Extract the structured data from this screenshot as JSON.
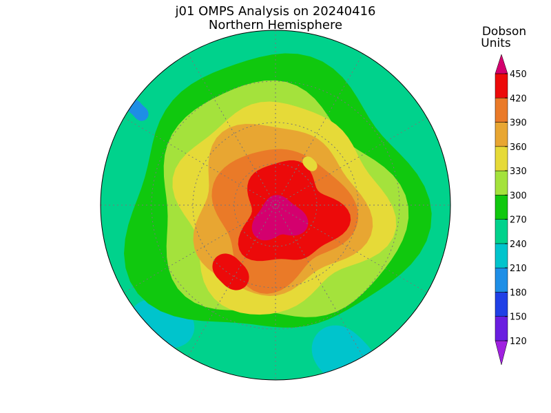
{
  "title": "j01 OMPS Analysis on 20240416",
  "subtitle": "Northern Hemisphere",
  "colorbar": {
    "title": [
      "Dobson",
      "Units"
    ],
    "ticks": [
      120,
      150,
      180,
      210,
      240,
      270,
      300,
      330,
      360,
      390,
      420,
      450
    ],
    "colors": [
      "#a020e0",
      "#6a1ee0",
      "#2040e6",
      "#1e8ee6",
      "#00c4cc",
      "#00d28c",
      "#10c80e",
      "#a4e23c",
      "#e6da38",
      "#e8a632",
      "#ea7a28",
      "#ec0a0a",
      "#d4006e"
    ]
  }
}
